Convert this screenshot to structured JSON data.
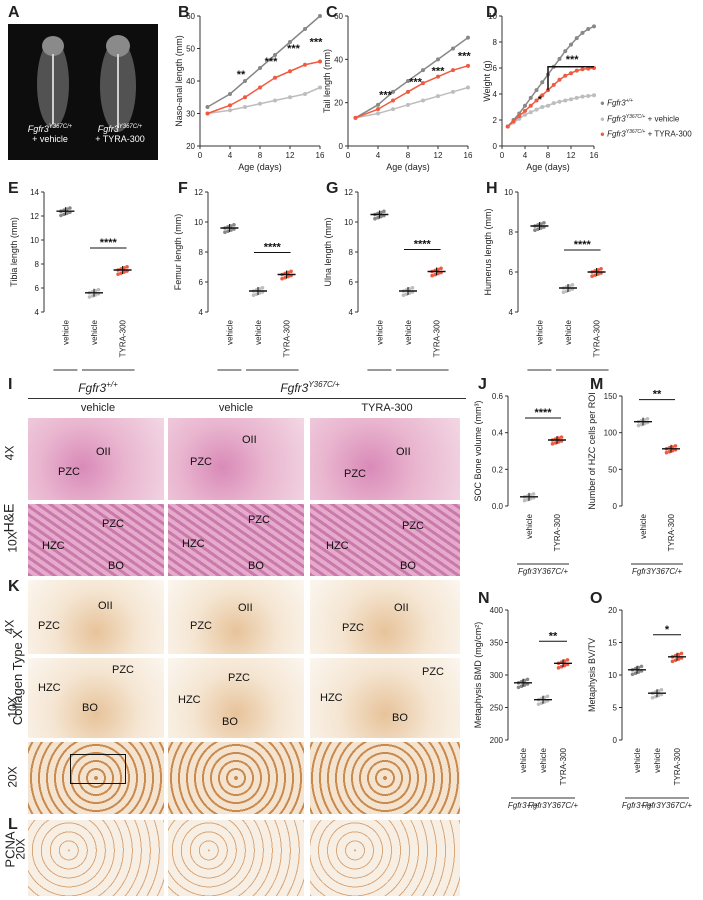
{
  "figure": {
    "panel_letters": [
      "A",
      "B",
      "C",
      "D",
      "E",
      "F",
      "G",
      "H",
      "I",
      "J",
      "K",
      "L",
      "M",
      "N",
      "O"
    ],
    "colors": {
      "wt": "#888888",
      "vehicle": "#bdbdbd",
      "tyra": "#f05a40",
      "axis": "#333333"
    },
    "panelA": {
      "left_label_1": "Fgfr3",
      "left_label_sup": "Y367C/+",
      "left_label_2": "+ vehicle",
      "right_label_1": "Fgfr3",
      "right_label_sup": "Y367C/+",
      "right_label_2": "+ TYRA-300"
    },
    "legend": [
      {
        "text": "Fgfr3",
        "sup": "+/+",
        "color": "#888888"
      },
      {
        "text": "Fgfr3",
        "sup": "Y367C/+",
        "suffix": " + vehicle",
        "color": "#bdbdbd"
      },
      {
        "text": "Fgfr3",
        "sup": "Y367C/+",
        "suffix": " + TYRA-300",
        "color": "#f05a40"
      }
    ],
    "histology": {
      "genotype_wt": "Fgfr3",
      "genotype_wt_sup": "+/+",
      "genotype_mut": "Fgfr3",
      "genotype_mut_sup": "Y367C/+",
      "col_vehicle_wt": "vehicle",
      "col_vehicle_mut": "vehicle",
      "col_tyra": "TYRA-300",
      "rows": {
        "he": "H&E",
        "collagen": "Collagen Type X",
        "pcna": "PCNA"
      },
      "mags": {
        "m4": "4X",
        "m10": "10X",
        "m20": "20X"
      },
      "labels": {
        "oii": "OII",
        "pzc": "PZC",
        "hzc": "HZC",
        "bo": "BO"
      }
    }
  },
  "chart_data": [
    {
      "id": "B",
      "type": "line",
      "ylabel": "Naso-anal length (mm)",
      "xlabel": "Age (days)",
      "xlim": [
        0,
        16
      ],
      "ylim": [
        20,
        60
      ],
      "xticks": [
        0,
        4,
        8,
        12,
        16
      ],
      "yticks": [
        20,
        30,
        40,
        50,
        60
      ],
      "x": [
        1,
        4,
        6,
        8,
        10,
        12,
        14,
        16
      ],
      "series": [
        {
          "values": [
            32,
            36,
            40,
            44,
            48,
            52,
            56,
            60
          ]
        },
        {
          "values": [
            30,
            31,
            32,
            33,
            34,
            35,
            36,
            38
          ]
        },
        {
          "values": [
            30,
            32.5,
            35,
            38,
            41,
            43,
            45,
            46
          ]
        }
      ],
      "annotations": [
        "**",
        "***",
        "***",
        "***"
      ]
    },
    {
      "id": "C",
      "type": "line",
      "ylabel": "Tail length (mm)",
      "xlabel": "Age (days)",
      "xlim": [
        0,
        16
      ],
      "ylim": [
        0,
        60
      ],
      "xticks": [
        0,
        4,
        8,
        12,
        16
      ],
      "yticks": [
        0,
        20,
        40,
        60
      ],
      "x": [
        1,
        4,
        6,
        8,
        10,
        12,
        14,
        16
      ],
      "series": [
        {
          "values": [
            13,
            19,
            25,
            30,
            35,
            40,
            45,
            50
          ]
        },
        {
          "values": [
            13,
            15,
            17,
            19,
            21,
            23,
            25,
            27
          ]
        },
        {
          "values": [
            13,
            17,
            21,
            25,
            29,
            32,
            35,
            37
          ]
        }
      ],
      "annotations": [
        "***",
        "***",
        "***",
        "***"
      ]
    },
    {
      "id": "D",
      "type": "line",
      "ylabel": "Weight (g)",
      "xlabel": "Age (days)",
      "xlim": [
        0,
        16
      ],
      "ylim": [
        0,
        10
      ],
      "xticks": [
        0,
        4,
        8,
        12,
        16
      ],
      "yticks": [
        0,
        2,
        4,
        6,
        8,
        10
      ],
      "x": [
        1,
        2,
        3,
        4,
        5,
        6,
        7,
        8,
        9,
        10,
        11,
        12,
        13,
        14,
        15,
        16
      ],
      "series": [
        {
          "values": [
            1.5,
            2,
            2.5,
            3.1,
            3.7,
            4.3,
            4.9,
            5.5,
            6.1,
            6.7,
            7.3,
            7.8,
            8.3,
            8.7,
            9,
            9.2
          ]
        },
        {
          "values": [
            1.5,
            1.8,
            2.1,
            2.4,
            2.6,
            2.8,
            3,
            3.1,
            3.3,
            3.4,
            3.5,
            3.6,
            3.7,
            3.8,
            3.85,
            3.9
          ]
        },
        {
          "values": [
            1.5,
            1.9,
            2.3,
            2.7,
            3.1,
            3.5,
            3.9,
            4.3,
            4.7,
            5.1,
            5.4,
            5.6,
            5.8,
            5.9,
            5.95,
            6
          ]
        }
      ],
      "annotations": [
        "*",
        "***"
      ]
    },
    {
      "id": "E",
      "type": "scatter",
      "ylabel": "Tibia length (mm)",
      "ylim": [
        4,
        14
      ],
      "yticks": [
        4,
        6,
        8,
        10,
        12,
        14
      ],
      "categories": [
        "vehicle",
        "vehicle",
        "TYRA-300"
      ],
      "means": [
        12.4,
        5.6,
        7.5
      ],
      "annotation": "****",
      "sig_between": [
        1,
        2
      ]
    },
    {
      "id": "F",
      "type": "scatter",
      "ylabel": "Femur length (mm)",
      "ylim": [
        4,
        12
      ],
      "yticks": [
        4,
        6,
        8,
        10,
        12
      ],
      "categories": [
        "vehicle",
        "vehicle",
        "TYRA-300"
      ],
      "means": [
        9.6,
        5.4,
        6.5
      ],
      "annotation": "****",
      "sig_between": [
        1,
        2
      ]
    },
    {
      "id": "G",
      "type": "scatter",
      "ylabel": "Ulna length (mm)",
      "ylim": [
        4,
        12
      ],
      "yticks": [
        4,
        6,
        8,
        10,
        12
      ],
      "categories": [
        "vehicle",
        "vehicle",
        "TYRA-300"
      ],
      "means": [
        10.5,
        5.4,
        6.7
      ],
      "annotation": "****",
      "sig_between": [
        1,
        2
      ]
    },
    {
      "id": "H",
      "type": "scatter",
      "ylabel": "Humerus length (mm)",
      "ylim": [
        4,
        10
      ],
      "yticks": [
        4,
        6,
        8,
        10
      ],
      "categories": [
        "vehicle",
        "vehicle",
        "TYRA-300"
      ],
      "means": [
        8.3,
        5.2,
        6.0
      ],
      "annotation": "****",
      "sig_between": [
        1,
        2
      ]
    },
    {
      "id": "J",
      "type": "scatter",
      "ylabel": "SOC Bone volume (mm³)",
      "ylim": [
        0,
        0.6
      ],
      "yticks": [
        0,
        0.2,
        0.4,
        0.6
      ],
      "ytick_labels": [
        "0.0",
        "0.2",
        "0.4",
        "0.6"
      ],
      "categories": [
        "vehicle",
        "TYRA-300"
      ],
      "means": [
        0.05,
        0.36
      ],
      "annotation": "****",
      "sig_between": [
        0,
        1
      ]
    },
    {
      "id": "M",
      "type": "scatter",
      "ylabel": "Number of HZC cells per ROI",
      "ylim": [
        0,
        150
      ],
      "yticks": [
        0,
        50,
        100,
        150
      ],
      "categories": [
        "vehicle",
        "TYRA-300"
      ],
      "means": [
        115,
        78
      ],
      "annotation": "**",
      "sig_between": [
        0,
        1
      ]
    },
    {
      "id": "N",
      "type": "scatter",
      "ylabel": "Metaphysis BMD (mg/cm²)",
      "ylim": [
        200,
        400
      ],
      "yticks": [
        200,
        250,
        300,
        350,
        400
      ],
      "categories": [
        "vehicle",
        "vehicle",
        "TYRA-300"
      ],
      "means": [
        288,
        262,
        318
      ],
      "annotation": "**",
      "sig_between": [
        1,
        2
      ]
    },
    {
      "id": "O",
      "type": "scatter",
      "ylabel": "Metaphysis BV/TV",
      "ylim": [
        0,
        20
      ],
      "yticks": [
        0,
        5,
        10,
        15,
        20
      ],
      "categories": [
        "vehicle",
        "vehicle",
        "TYRA-300"
      ],
      "means": [
        10.8,
        7.2,
        12.8
      ],
      "annotation": "*",
      "sig_between": [
        1,
        2
      ]
    }
  ],
  "genotype_labels": {
    "wt": "Fgfr3",
    "wt_sup": "+/+",
    "mut": "Fgfr3",
    "mut_sup": "Y367C/+"
  }
}
